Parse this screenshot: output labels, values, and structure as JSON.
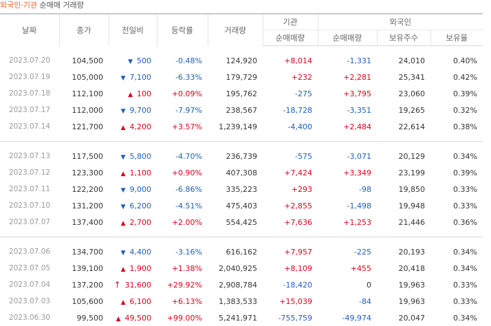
{
  "caption": {
    "part1": "외국인·기관",
    "part2": "순매매 거래량"
  },
  "headers": {
    "date": "날짜",
    "close": "종가",
    "change": "전일비",
    "rate": "등락률",
    "volume": "거래량",
    "inst_group": "기관",
    "foreign_group": "외국인",
    "inst_net": "순매매량",
    "foreign_net": "순매매량",
    "holdings": "보유주수",
    "ratio": "보유율"
  },
  "groups": [
    [
      {
        "date": "2023.07.20",
        "close": "104,500",
        "dir": "down",
        "change": "500",
        "rate": "-0.48%",
        "volume": "124,920",
        "inst": "+8,014",
        "foreign": "-1,331",
        "holdings": "24,010",
        "ratio": "0.40%"
      },
      {
        "date": "2023.07.19",
        "close": "105,000",
        "dir": "down",
        "change": "7,100",
        "rate": "-6.33%",
        "volume": "179,729",
        "inst": "+232",
        "foreign": "+2,281",
        "holdings": "25,341",
        "ratio": "0.42%"
      },
      {
        "date": "2023.07.18",
        "close": "112,100",
        "dir": "up",
        "change": "100",
        "rate": "+0.09%",
        "volume": "195,762",
        "inst": "-275",
        "foreign": "+3,795",
        "holdings": "23,060",
        "ratio": "0.39%"
      },
      {
        "date": "2023.07.17",
        "close": "112,000",
        "dir": "down",
        "change": "9,700",
        "rate": "-7.97%",
        "volume": "238,567",
        "inst": "-18,728",
        "foreign": "-3,351",
        "holdings": "19,265",
        "ratio": "0.32%"
      },
      {
        "date": "2023.07.14",
        "close": "121,700",
        "dir": "up",
        "change": "4,200",
        "rate": "+3.57%",
        "volume": "1,239,149",
        "inst": "-4,400",
        "foreign": "+2,484",
        "holdings": "22,614",
        "ratio": "0.38%"
      }
    ],
    [
      {
        "date": "2023.07.13",
        "close": "117,500",
        "dir": "down",
        "change": "5,800",
        "rate": "-4.70%",
        "volume": "236,739",
        "inst": "-575",
        "foreign": "-3,071",
        "holdings": "20,129",
        "ratio": "0.34%"
      },
      {
        "date": "2023.07.12",
        "close": "123,300",
        "dir": "up",
        "change": "1,100",
        "rate": "+0.90%",
        "volume": "407,308",
        "inst": "+7,424",
        "foreign": "+3,349",
        "holdings": "23,199",
        "ratio": "0.39%"
      },
      {
        "date": "2023.07.11",
        "close": "122,200",
        "dir": "down",
        "change": "9,000",
        "rate": "-6.86%",
        "volume": "335,223",
        "inst": "+293",
        "foreign": "-98",
        "holdings": "19,850",
        "ratio": "0.33%"
      },
      {
        "date": "2023.07.10",
        "close": "131,200",
        "dir": "down",
        "change": "6,200",
        "rate": "-4.51%",
        "volume": "475,403",
        "inst": "+2,855",
        "foreign": "-1,498",
        "holdings": "19,948",
        "ratio": "0.33%"
      },
      {
        "date": "2023.07.07",
        "close": "137,400",
        "dir": "up",
        "change": "2,700",
        "rate": "+2.00%",
        "volume": "554,425",
        "inst": "+7,636",
        "foreign": "+1,253",
        "holdings": "21,446",
        "ratio": "0.36%"
      }
    ],
    [
      {
        "date": "2023.07.06",
        "close": "134,700",
        "dir": "down",
        "change": "4,400",
        "rate": "-3.16%",
        "volume": "616,162",
        "inst": "+7,957",
        "foreign": "-225",
        "holdings": "20,193",
        "ratio": "0.34%"
      },
      {
        "date": "2023.07.05",
        "close": "139,100",
        "dir": "up",
        "change": "1,900",
        "rate": "+1.38%",
        "volume": "2,040,925",
        "inst": "+8,109",
        "foreign": "+455",
        "holdings": "20,418",
        "ratio": "0.34%"
      },
      {
        "date": "2023.07.04",
        "close": "137,200",
        "dir": "limit-up",
        "change": "31,600",
        "rate": "+29.92%",
        "volume": "2,908,784",
        "inst": "-18,420",
        "foreign": "0",
        "holdings": "19,963",
        "ratio": "0.33%"
      },
      {
        "date": "2023.07.03",
        "close": "105,600",
        "dir": "up",
        "change": "6,100",
        "rate": "+6.13%",
        "volume": "1,383,533",
        "inst": "+15,039",
        "foreign": "-84",
        "holdings": "19,963",
        "ratio": "0.33%"
      },
      {
        "date": "2023.06.30",
        "close": "99,500",
        "dir": "up",
        "change": "49,500",
        "rate": "+99.00%",
        "volume": "5,241,971",
        "inst": "-755,759",
        "foreign": "-49,974",
        "holdings": "20,047",
        "ratio": "0.34%"
      }
    ]
  ],
  "icons": {
    "up": "triangle-up-icon",
    "down": "triangle-down-icon",
    "limit-up": "arrow-up-icon"
  },
  "colors": {
    "up": "#d9001b",
    "down": "#1e5eba",
    "caption_accent": "#e8632e"
  }
}
